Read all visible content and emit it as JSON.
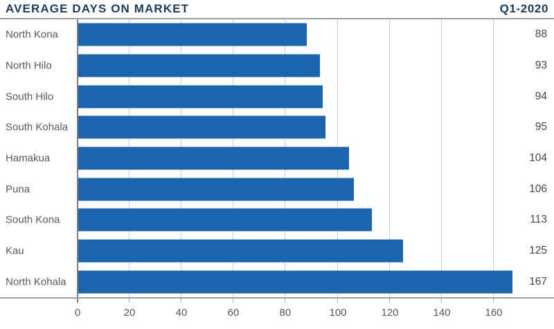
{
  "header": {
    "title": "AVERAGE DAYS ON MARKET",
    "period": "Q1-2020"
  },
  "chart_data": {
    "type": "bar",
    "orientation": "horizontal",
    "title": "AVERAGE DAYS ON MARKET",
    "subtitle": "Q1-2020",
    "categories": [
      "North Kona",
      "North Hilo",
      "South Hilo",
      "South Kohala",
      "Hamakua",
      "Puna",
      "South Kona",
      "Kau",
      "North Kohala"
    ],
    "values": [
      88,
      93,
      94,
      95,
      104,
      106,
      113,
      125,
      167
    ],
    "value_labels_shown": true,
    "xlabel": "",
    "ylabel": "",
    "xlim": [
      0,
      183
    ],
    "x_ticks": [
      0,
      20,
      40,
      60,
      80,
      100,
      120,
      140,
      160
    ],
    "grid": true,
    "legend": "none"
  },
  "colors": {
    "bar": "#1d64ae",
    "title_text": "#1b3b5e",
    "category_text": "#58595b",
    "value_text": "#48484a",
    "tick_text": "#55565a",
    "gridline": "#cccccc",
    "axis_line": "#9e9e9e",
    "zero_axis": "#7f7f7f",
    "background": "#ffffff"
  }
}
